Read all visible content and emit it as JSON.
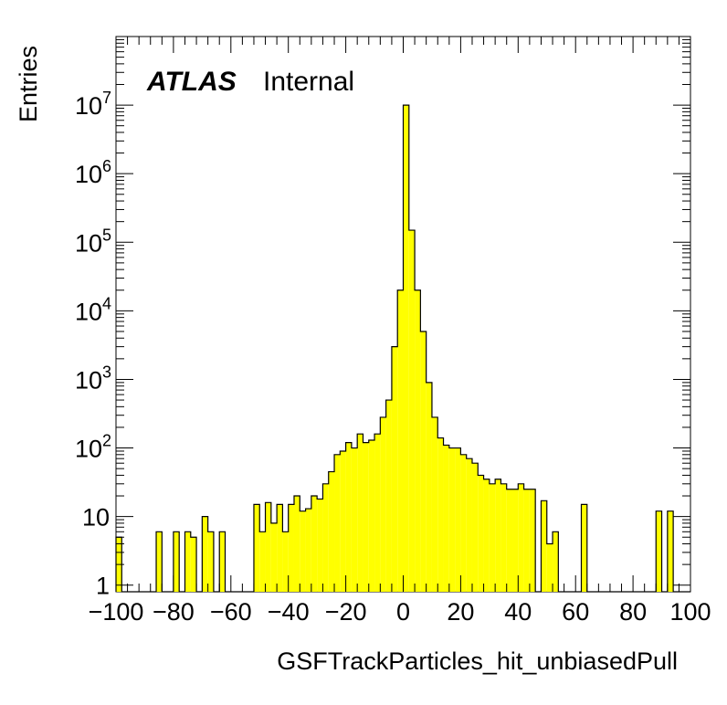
{
  "header": {
    "experiment": "ATLAS",
    "status": "Internal"
  },
  "colors": {
    "fill": "#ffff00",
    "line": "#000000",
    "background": "#ffffff"
  },
  "chart_data": {
    "type": "bar",
    "xlabel": "GSFTrackParticles_hit_unbiasedPull",
    "ylabel": "Entries",
    "xlim": [
      -100,
      100
    ],
    "ylim": [
      0.8,
      100000000
    ],
    "yscale": "log",
    "grid": false,
    "legend": "none",
    "x_ticks": [
      "−100",
      "−80",
      "−60",
      "−40",
      "−20",
      "0",
      "20",
      "40",
      "60",
      "80",
      "100"
    ],
    "y_ticks": [
      {
        "base": "1",
        "exp": ""
      },
      {
        "base": "10",
        "exp": ""
      },
      {
        "base": "10",
        "exp": "2"
      },
      {
        "base": "10",
        "exp": "3"
      },
      {
        "base": "10",
        "exp": "4"
      },
      {
        "base": "10",
        "exp": "5"
      },
      {
        "base": "10",
        "exp": "6"
      },
      {
        "base": "10",
        "exp": "7"
      }
    ],
    "bin_width": 2,
    "bin_edges_start": -100,
    "values": [
      5,
      0,
      0,
      0,
      0,
      0,
      0,
      6,
      0,
      0,
      6,
      0,
      6,
      5,
      0,
      10,
      6,
      0,
      6,
      0,
      0,
      0,
      0,
      0,
      15,
      6,
      16,
      8,
      15,
      6,
      15,
      20,
      12,
      13,
      20,
      18,
      30,
      45,
      80,
      90,
      120,
      100,
      160,
      120,
      130,
      160,
      280,
      500,
      3000,
      20000,
      10000000,
      150000,
      20000,
      5000,
      900,
      280,
      140,
      110,
      100,
      100,
      80,
      70,
      60,
      40,
      35,
      30,
      35,
      30,
      25,
      25,
      30,
      25,
      25,
      0,
      17,
      4,
      6,
      0,
      0,
      0,
      0,
      15,
      0,
      0,
      0,
      0,
      0,
      0,
      0,
      0,
      0,
      0,
      0,
      0,
      12,
      0,
      12,
      0,
      0,
      0
    ]
  }
}
